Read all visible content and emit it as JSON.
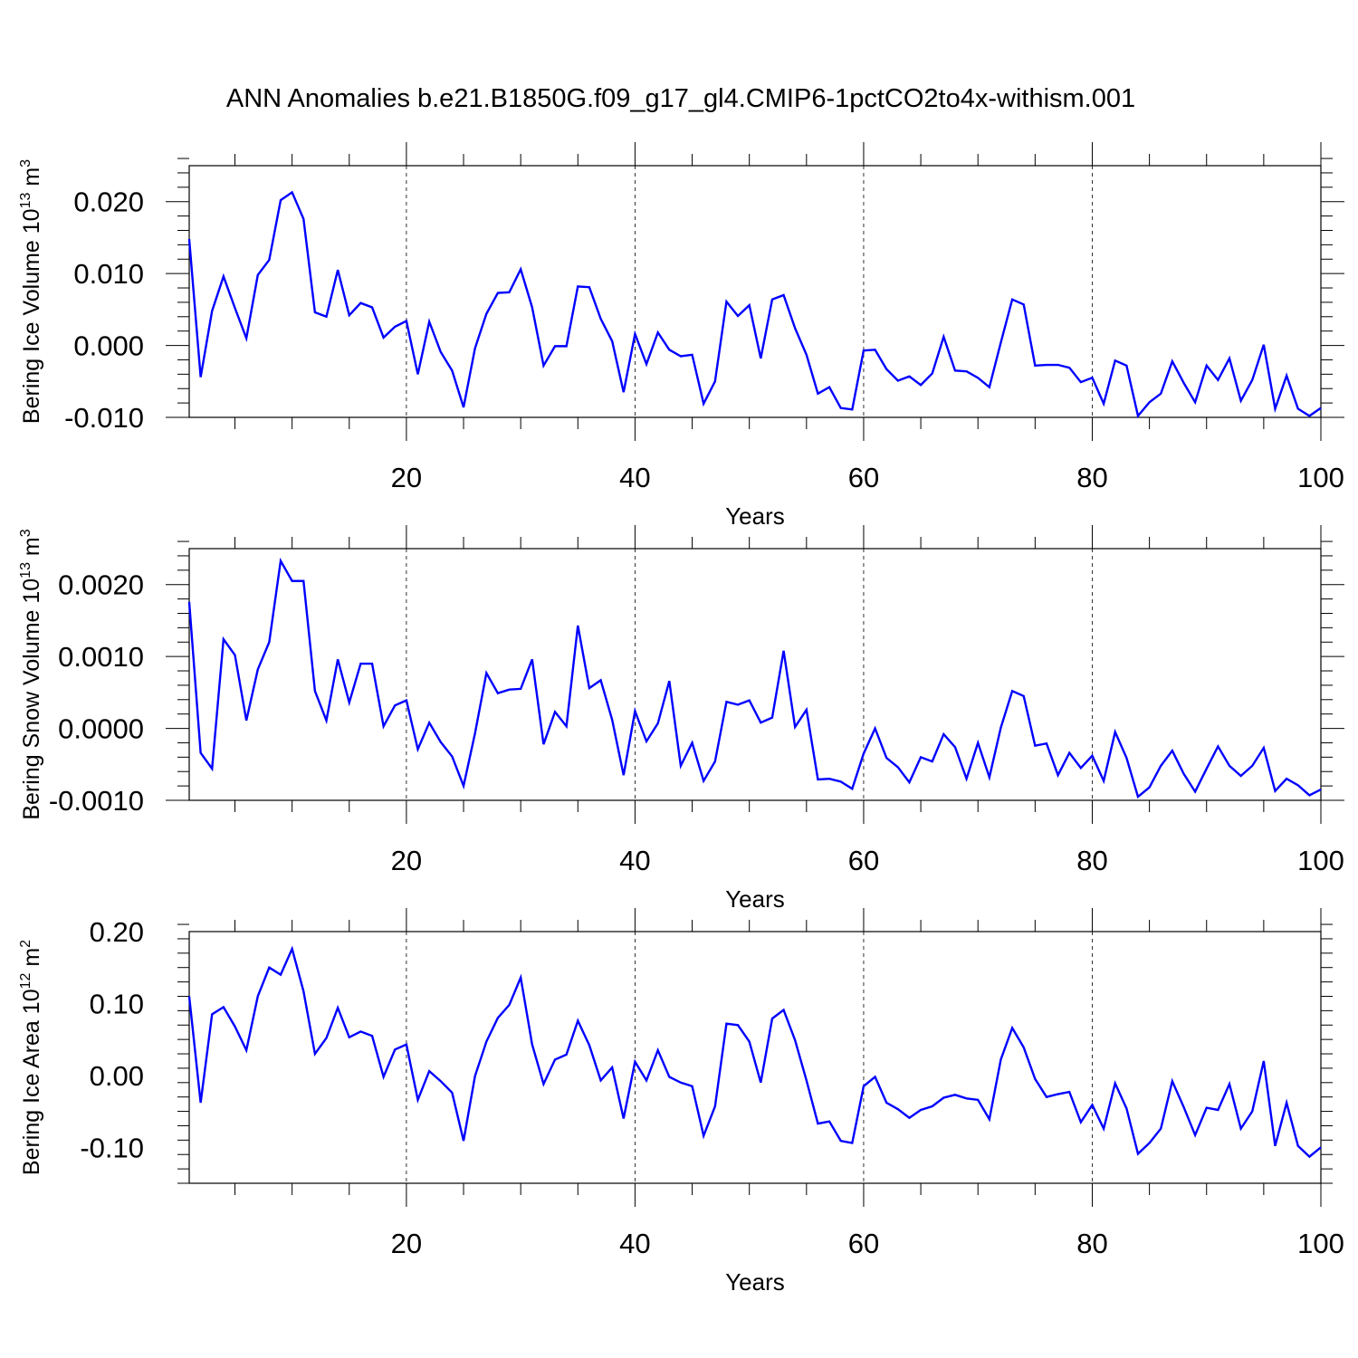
{
  "title": "ANN Anomalies b.e21.B1850G.f09_g17_gl4.CMIP6-1pctCO2to4x-withism.001",
  "line_color": "#0000ff",
  "chart_data": [
    {
      "type": "line",
      "ylabel": "Bering Ice Volume 10",
      "ylabel_exp": "13",
      "ylabel_unit": " m",
      "ylabel_unit_exp": "3",
      "xlabel": "Years",
      "xlim": [
        1,
        100
      ],
      "ylim": [
        -0.01,
        0.025
      ],
      "xticks": [
        20,
        40,
        60,
        80,
        100
      ],
      "xtick_labels": [
        "20",
        "40",
        "60",
        "80",
        "100"
      ],
      "yticks": [
        -0.01,
        0.0,
        0.01,
        0.02
      ],
      "ytick_labels": [
        "-0.010",
        "0.000",
        "0.010",
        "0.020"
      ],
      "y_minor_step": 0.002,
      "x": [
        1,
        2,
        3,
        4,
        5,
        6,
        7,
        8,
        9,
        10,
        11,
        12,
        13,
        14,
        15,
        16,
        17,
        18,
        19,
        20,
        21,
        22,
        23,
        24,
        25,
        26,
        27,
        28,
        29,
        30,
        31,
        32,
        33,
        34,
        35,
        36,
        37,
        38,
        39,
        40,
        41,
        42,
        43,
        44,
        45,
        46,
        47,
        48,
        49,
        50,
        51,
        52,
        53,
        54,
        55,
        56,
        57,
        58,
        59,
        60,
        61,
        62,
        63,
        64,
        65,
        66,
        67,
        68,
        69,
        70,
        71,
        72,
        73,
        74,
        75,
        76,
        77,
        78,
        79,
        80,
        81,
        82,
        83,
        84,
        85,
        86,
        87,
        88,
        89,
        90,
        91,
        92,
        93,
        94,
        95,
        96,
        97,
        98,
        99,
        100
      ],
      "values": [
        0.0148,
        -0.0044,
        0.0048,
        0.0096,
        0.0052,
        0.001,
        0.0098,
        0.0119,
        0.0202,
        0.0213,
        0.0176,
        0.0046,
        0.004,
        0.0105,
        0.0042,
        0.0059,
        0.0053,
        0.0011,
        0.0026,
        0.0034,
        -0.004,
        0.0033,
        -0.0009,
        -0.0035,
        -0.0086,
        -0.0004,
        0.0044,
        0.0073,
        0.0074,
        0.0106,
        0.0053,
        -0.0028,
        -0.0001,
        -0.0001,
        0.0082,
        0.0081,
        0.0037,
        0.0006,
        -0.0065,
        0.0016,
        -0.0026,
        0.0018,
        -0.0006,
        -0.0015,
        -0.0013,
        -0.0081,
        -0.005,
        0.0061,
        0.0041,
        0.0056,
        -0.0018,
        0.0064,
        0.007,
        0.0024,
        -0.0013,
        -0.0067,
        -0.0058,
        -0.0087,
        -0.0089,
        -0.0007,
        -0.0006,
        -0.0033,
        -0.0049,
        -0.0043,
        -0.0055,
        -0.0039,
        0.0012,
        -0.0035,
        -0.0036,
        -0.0045,
        -0.0058,
        0.0004,
        0.0064,
        0.0057,
        -0.0028,
        -0.0027,
        -0.0027,
        -0.0031,
        -0.0051,
        -0.0045,
        -0.0081,
        -0.0021,
        -0.0028,
        -0.0098,
        -0.0079,
        -0.0067,
        -0.0022,
        -0.0052,
        -0.0079,
        -0.0028,
        -0.0048,
        -0.0018,
        -0.0077,
        -0.0048,
        0.0001,
        -0.0088,
        -0.0042,
        -0.0088,
        -0.0098,
        -0.0087
      ]
    },
    {
      "type": "line",
      "ylabel": "Bering Snow Volume 10",
      "ylabel_exp": "13",
      "ylabel_unit": " m",
      "ylabel_unit_exp": "3",
      "xlabel": "Years",
      "xlim": [
        1,
        100
      ],
      "ylim": [
        -0.001,
        0.0025
      ],
      "xticks": [
        20,
        40,
        60,
        80,
        100
      ],
      "xtick_labels": [
        "20",
        "40",
        "60",
        "80",
        "100"
      ],
      "yticks": [
        -0.001,
        0.0,
        0.001,
        0.002
      ],
      "ytick_labels": [
        "-0.0010",
        "0.0000",
        "0.0010",
        "0.0020"
      ],
      "y_minor_step": 0.0002,
      "x": [
        1,
        2,
        3,
        4,
        5,
        6,
        7,
        8,
        9,
        10,
        11,
        12,
        13,
        14,
        15,
        16,
        17,
        18,
        19,
        20,
        21,
        22,
        23,
        24,
        25,
        26,
        27,
        28,
        29,
        30,
        31,
        32,
        33,
        34,
        35,
        36,
        37,
        38,
        39,
        40,
        41,
        42,
        43,
        44,
        45,
        46,
        47,
        48,
        49,
        50,
        51,
        52,
        53,
        54,
        55,
        56,
        57,
        58,
        59,
        60,
        61,
        62,
        63,
        64,
        65,
        66,
        67,
        68,
        69,
        70,
        71,
        72,
        73,
        74,
        75,
        76,
        77,
        78,
        79,
        80,
        81,
        82,
        83,
        84,
        85,
        86,
        87,
        88,
        89,
        90,
        91,
        92,
        93,
        94,
        95,
        96,
        97,
        98,
        99,
        100
      ],
      "values": [
        0.00176,
        -0.00034,
        -0.00056,
        0.00124,
        0.00102,
        0.00011,
        0.00082,
        0.0012,
        0.00233,
        0.00205,
        0.00205,
        0.00052,
        0.00011,
        0.00096,
        0.00036,
        0.0009,
        0.0009,
        3e-05,
        0.00032,
        0.00039,
        -0.00029,
        8e-05,
        -0.00019,
        -0.00039,
        -0.0008,
        -7e-05,
        0.00077,
        0.00049,
        0.00054,
        0.00055,
        0.00096,
        -0.00022,
        0.00023,
        3e-05,
        0.00143,
        0.00056,
        0.00067,
        0.00012,
        -0.00065,
        0.00024,
        -0.00018,
        7e-05,
        0.00066,
        -0.00052,
        -0.0002,
        -0.00073,
        -0.00046,
        0.00037,
        0.00033,
        0.00039,
        8e-05,
        0.00015,
        0.00108,
        2e-05,
        0.00026,
        -0.00071,
        -0.0007,
        -0.00074,
        -0.00084,
        -0.00035,
        0.0,
        -0.00041,
        -0.00054,
        -0.00075,
        -0.0004,
        -0.00046,
        -8e-05,
        -0.00026,
        -0.0007,
        -0.0002,
        -0.00068,
        1e-05,
        0.00052,
        0.00045,
        -0.00024,
        -0.00021,
        -0.00065,
        -0.00034,
        -0.00055,
        -0.00038,
        -0.00073,
        -5e-05,
        -0.00041,
        -0.00095,
        -0.00082,
        -0.00052,
        -0.00031,
        -0.00063,
        -0.00088,
        -0.00056,
        -0.00025,
        -0.00052,
        -0.00066,
        -0.00052,
        -0.00027,
        -0.00087,
        -0.0007,
        -0.00079,
        -0.00093,
        -0.00085
      ]
    },
    {
      "type": "line",
      "ylabel": "Bering Ice Area 10",
      "ylabel_exp": "12",
      "ylabel_unit": " m",
      "ylabel_unit_exp": "2",
      "xlabel": "Years",
      "xlim": [
        1,
        100
      ],
      "ylim": [
        -0.15,
        0.2
      ],
      "xticks": [
        20,
        40,
        60,
        80,
        100
      ],
      "xtick_labels": [
        "20",
        "40",
        "60",
        "80",
        "100"
      ],
      "yticks": [
        -0.1,
        0.0,
        0.1,
        0.2
      ],
      "ytick_labels": [
        "-0.10",
        "0.00",
        "0.10",
        "0.20"
      ],
      "y_minor_step": 0.02,
      "x": [
        1,
        2,
        3,
        4,
        5,
        6,
        7,
        8,
        9,
        10,
        11,
        12,
        13,
        14,
        15,
        16,
        17,
        18,
        19,
        20,
        21,
        22,
        23,
        24,
        25,
        26,
        27,
        28,
        29,
        30,
        31,
        32,
        33,
        34,
        35,
        36,
        37,
        38,
        39,
        40,
        41,
        42,
        43,
        44,
        45,
        46,
        47,
        48,
        49,
        50,
        51,
        52,
        53,
        54,
        55,
        56,
        57,
        58,
        59,
        60,
        61,
        62,
        63,
        64,
        65,
        66,
        67,
        68,
        69,
        70,
        71,
        72,
        73,
        74,
        75,
        76,
        77,
        78,
        79,
        80,
        81,
        82,
        83,
        84,
        85,
        86,
        87,
        88,
        89,
        90,
        91,
        92,
        93,
        94,
        95,
        96,
        97,
        98,
        99,
        100
      ],
      "values": [
        0.11,
        -0.038,
        0.085,
        0.095,
        0.068,
        0.035,
        0.11,
        0.15,
        0.14,
        0.176,
        0.117,
        0.03,
        0.052,
        0.094,
        0.053,
        0.061,
        0.055,
        -0.002,
        0.036,
        0.043,
        -0.034,
        0.006,
        -0.008,
        -0.024,
        -0.091,
        -0.001,
        0.047,
        0.08,
        0.098,
        0.136,
        0.043,
        -0.012,
        0.022,
        0.029,
        0.076,
        0.042,
        -0.007,
        0.011,
        -0.06,
        0.019,
        -0.007,
        0.035,
        -0.002,
        -0.01,
        -0.015,
        -0.084,
        -0.043,
        0.072,
        0.07,
        0.047,
        -0.01,
        0.079,
        0.091,
        0.049,
        -0.007,
        -0.067,
        -0.064,
        -0.091,
        -0.094,
        -0.015,
        -0.002,
        -0.038,
        -0.047,
        -0.059,
        -0.048,
        -0.043,
        -0.031,
        -0.027,
        -0.032,
        -0.034,
        -0.061,
        0.022,
        0.066,
        0.039,
        -0.005,
        -0.03,
        -0.026,
        -0.023,
        -0.065,
        -0.041,
        -0.074,
        -0.011,
        -0.046,
        -0.109,
        -0.094,
        -0.074,
        -0.008,
        -0.044,
        -0.083,
        -0.045,
        -0.048,
        -0.012,
        -0.074,
        -0.05,
        0.02,
        -0.098,
        -0.038,
        -0.098,
        -0.113,
        -0.1
      ]
    }
  ]
}
